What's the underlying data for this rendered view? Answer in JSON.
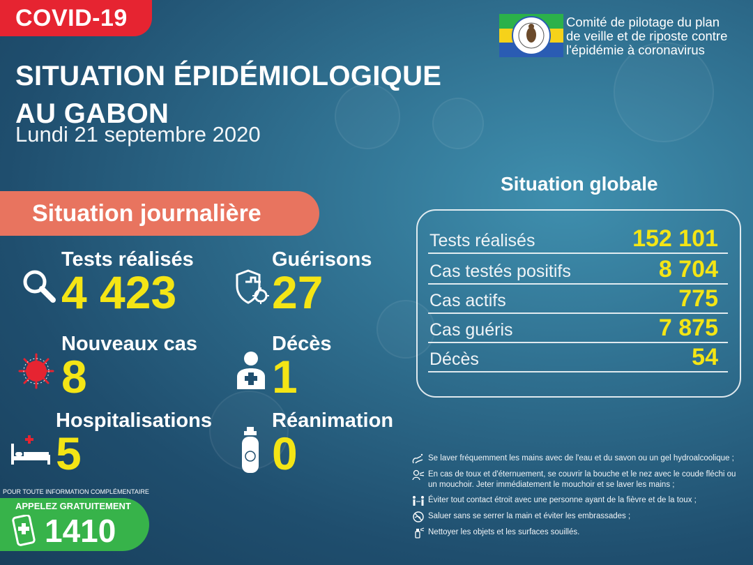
{
  "badge": "COVID-19",
  "title": {
    "line1": "SITUATION ÉPIDÉMIOLOGIQUE",
    "line2": "AU GABON"
  },
  "date": "Lundi 21 septembre 2020",
  "committee": {
    "line1": "Comité de pilotage du plan",
    "line2": "de veille et de riposte contre",
    "line3": "l'épidémie à coronavirus"
  },
  "daily": {
    "heading": "Situation journalière",
    "tests": {
      "label": "Tests réalisés",
      "value": "4 423"
    },
    "recoveries": {
      "label": "Guérisons",
      "value": "27"
    },
    "new_cases": {
      "label": "Nouveaux cas",
      "value": "8"
    },
    "deaths": {
      "label": "Décès",
      "value": "1"
    },
    "hospitalizations": {
      "label": "Hospitalisations",
      "value": "5"
    },
    "icu": {
      "label": "Réanimation",
      "value": "0"
    }
  },
  "global": {
    "heading": "Situation globale",
    "rows": [
      {
        "label": "Tests réalisés",
        "value": "152 101"
      },
      {
        "label": "Cas testés positifs",
        "value": "8 704"
      },
      {
        "label": "Cas actifs",
        "value": "775"
      },
      {
        "label": "Cas guéris",
        "value": "7 875"
      },
      {
        "label": "Décès",
        "value": "54"
      }
    ]
  },
  "tips": [
    {
      "icon": "handwash-icon",
      "text": "Se laver fréquemment les mains avec de l'eau et du savon ou un gel hydroalcoolique ;"
    },
    {
      "icon": "cough-icon",
      "text": "En cas de toux et d'éternuement, se couvrir la bouche et le nez avec le coude fléchi ou un mouchoir. Jeter immédiatement le mouchoir et se laver les mains ;"
    },
    {
      "icon": "distance-icon",
      "text": "Éviter tout contact étroit avec une personne ayant de la fièvre et de la toux ;"
    },
    {
      "icon": "no-handshake-icon",
      "text": "Saluer sans se serrer la main et éviter les embrassades ;"
    },
    {
      "icon": "spray-icon",
      "text": "Nettoyer les objets et les surfaces souillés."
    }
  ],
  "contact": {
    "info": "POUR TOUTE INFORMATION COMPLÉMENTAIRE",
    "call": "APPELEZ GRATUITEMENT",
    "number": "1410"
  },
  "colors": {
    "red": "#e62431",
    "salmon": "#e8745f",
    "yellow": "#f4e515",
    "green": "#37b34a",
    "background": "#2f6f8f"
  }
}
